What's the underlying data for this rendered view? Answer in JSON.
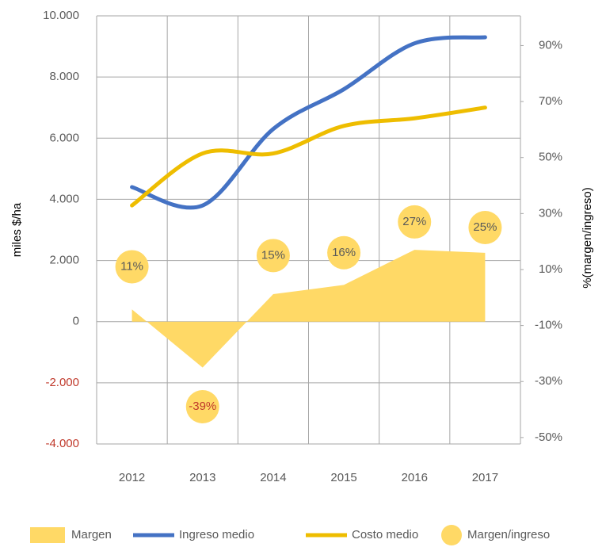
{
  "chart_data": {
    "type": "combo",
    "categories": [
      "2012",
      "2013",
      "2014",
      "2015",
      "2016",
      "2017"
    ],
    "ylabel": "miles $/ha",
    "y2label": "%(margen/ingreso)",
    "ylim": [
      -4000,
      10000
    ],
    "yticks": [
      {
        "value": -4000,
        "label": "-4.000"
      },
      {
        "value": -2000,
        "label": "-2.000"
      },
      0,
      {
        "value": 2000,
        "label": "2.000"
      },
      {
        "value": 4000,
        "label": "4.000"
      },
      {
        "value": 6000,
        "label": "6.000"
      },
      {
        "value": 8000,
        "label": "8.000"
      },
      {
        "value": 10000,
        "label": "10.000"
      }
    ],
    "y2lim": [
      -52.3,
      100.6
    ],
    "y2ticks": [
      {
        "value": -50,
        "label": "-50%"
      },
      {
        "value": -30,
        "label": "-30%"
      },
      {
        "value": -10,
        "label": "-10%"
      },
      {
        "value": 10,
        "label": "10%"
      },
      {
        "value": 30,
        "label": "30%"
      },
      {
        "value": 50,
        "label": "50%"
      },
      {
        "value": 70,
        "label": "70%"
      },
      {
        "value": 90,
        "label": "90%"
      }
    ],
    "grid": true,
    "legend": "bottom",
    "negative_color": "#c0392b",
    "series": [
      {
        "name": "Margen",
        "type": "area",
        "color": "#ffd966",
        "values": [
          400,
          -1500,
          900,
          1200,
          2350,
          2250
        ]
      },
      {
        "name": "Ingreso medio",
        "type": "line",
        "color": "#4472c4",
        "values": [
          4400,
          3800,
          6300,
          7600,
          9100,
          9300
        ]
      },
      {
        "name": "Costo medio",
        "type": "line",
        "color": "#eebd00",
        "values": [
          3800,
          5500,
          5500,
          6400,
          6650,
          7000
        ]
      },
      {
        "name": "Margen/ingreso",
        "type": "scatter",
        "axis": "y2",
        "color": "#ffd966",
        "values": [
          11,
          -39,
          15,
          16,
          27,
          25
        ],
        "value_labels": [
          "11%",
          "-39%",
          "15%",
          "16%",
          "27%",
          "25%"
        ]
      }
    ]
  }
}
